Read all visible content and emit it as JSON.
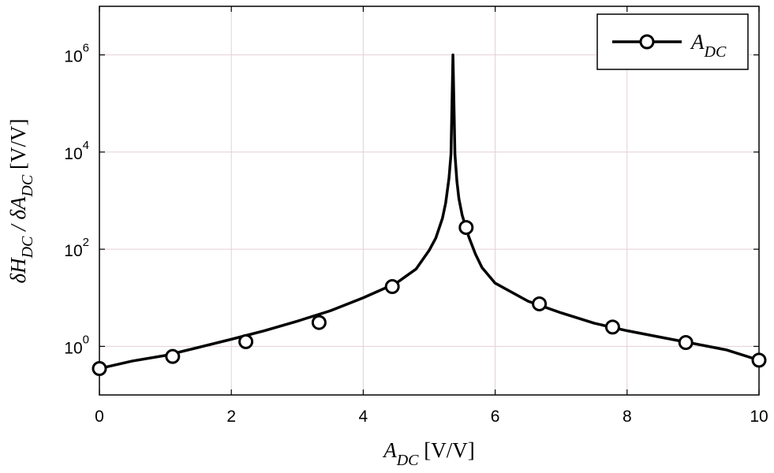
{
  "chart_data": {
    "type": "line",
    "yscale": "log",
    "xlim": [
      0,
      10
    ],
    "ylim_exponents": [
      -1,
      7
    ],
    "grid": true,
    "x_ticks": [
      0,
      2,
      4,
      6,
      8,
      10
    ],
    "x_tick_labels": [
      "0",
      "2",
      "4",
      "6",
      "8",
      "10"
    ],
    "y_ticks": [
      1,
      100,
      10000,
      1000000
    ],
    "y_tick_labels": [
      {
        "base": "10",
        "exp": "0"
      },
      {
        "base": "10",
        "exp": "2"
      },
      {
        "base": "10",
        "exp": "4"
      },
      {
        "base": "10",
        "exp": "6"
      }
    ],
    "xlabel": {
      "main": "A",
      "sub": "DC",
      "unit": " [V/V]"
    },
    "ylabel": {
      "d1": "δH",
      "sub1": "DC",
      "sep": " / δA",
      "sub2": "DC",
      "unit": " [V/V]"
    },
    "legend": {
      "name": "A",
      "sub": "DC",
      "position": "top-right"
    },
    "series": [
      {
        "name": "A_DC",
        "color": "#000000",
        "marker": "circle",
        "x": [
          0.0,
          0.5,
          1.0,
          1.5,
          2.0,
          2.5,
          3.0,
          3.5,
          4.0,
          4.5,
          4.8,
          5.0,
          5.1,
          5.2,
          5.25,
          5.3,
          5.33,
          5.36,
          5.39,
          5.42,
          5.45,
          5.5,
          5.55,
          5.6,
          5.7,
          5.8,
          6.0,
          6.5,
          7.0,
          7.5,
          8.0,
          8.5,
          9.0,
          9.5,
          10.0
        ],
        "y": [
          0.35,
          0.5,
          0.65,
          0.95,
          1.4,
          2.1,
          3.3,
          5.4,
          10,
          20,
          39,
          95,
          170,
          430,
          900,
          2900,
          9000,
          1000000,
          9000,
          2500,
          1100,
          500,
          300,
          180,
          80,
          42,
          20,
          8.5,
          4.9,
          3.0,
          2.1,
          1.55,
          1.15,
          0.85,
          0.52
        ],
        "markers": [
          {
            "x": 0.0,
            "y": 0.35
          },
          {
            "x": 1.11,
            "y": 0.62
          },
          {
            "x": 2.22,
            "y": 1.25
          },
          {
            "x": 3.33,
            "y": 3.1
          },
          {
            "x": 4.44,
            "y": 17
          },
          {
            "x": 5.56,
            "y": 280
          },
          {
            "x": 6.67,
            "y": 7.5
          },
          {
            "x": 7.78,
            "y": 2.5
          },
          {
            "x": 8.89,
            "y": 1.2
          },
          {
            "x": 10.0,
            "y": 0.52
          }
        ]
      }
    ]
  }
}
